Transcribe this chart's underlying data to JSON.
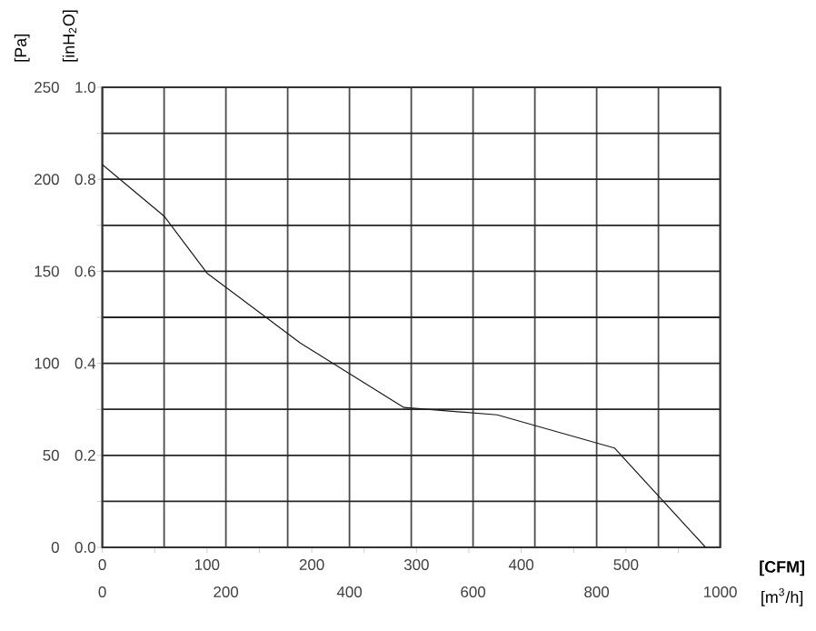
{
  "chart_data": {
    "type": "line",
    "xlabel": "[CFM]",
    "x2label": "[m$^{3}$/h]",
    "ylabel": "[Pa]",
    "y2label": "[inH$_{2}$O]",
    "x": [
      0,
      59,
      100,
      189,
      288,
      377,
      489,
      576
    ],
    "series": [
      {
        "color": "#1a1a1a",
        "values": [
          208,
          180,
          149,
          111,
          76,
          72,
          54,
          0
        ]
      }
    ],
    "xlim": [
      0,
      590
    ],
    "xticks": [
      0,
      {
        "value": 50,
        "label": null
      },
      100,
      {
        "value": 150,
        "label": null
      },
      200,
      {
        "value": 250,
        "label": null
      },
      300,
      {
        "value": 350,
        "label": null
      },
      400,
      {
        "value": 450,
        "label": null
      },
      500,
      {
        "value": 550,
        "label": null
      }
    ],
    "x2lim": [
      0,
      1000
    ],
    "x2ticks": [
      0,
      {
        "value": 100,
        "label": null
      },
      200,
      {
        "value": 300,
        "label": null
      },
      400,
      {
        "value": 500,
        "label": null
      },
      600,
      {
        "value": 700,
        "label": null
      },
      800,
      {
        "value": 900,
        "label": null
      },
      1000
    ],
    "ylim": [
      0,
      250
    ],
    "yticks": [
      0,
      {
        "value": 25,
        "label": null
      },
      50,
      {
        "value": 75,
        "label": null
      },
      100,
      {
        "value": 125,
        "label": null
      },
      150,
      {
        "value": 175,
        "label": null
      },
      200,
      {
        "value": 225,
        "label": null
      },
      250
    ],
    "y2lim": [
      0,
      1.0
    ],
    "y2ticks": [
      {
        "value": 0,
        "label": "0.0"
      },
      0.2,
      0.4,
      0.6,
      0.8,
      {
        "value": 1.0,
        "label": "1.0"
      }
    ],
    "grid": true
  }
}
